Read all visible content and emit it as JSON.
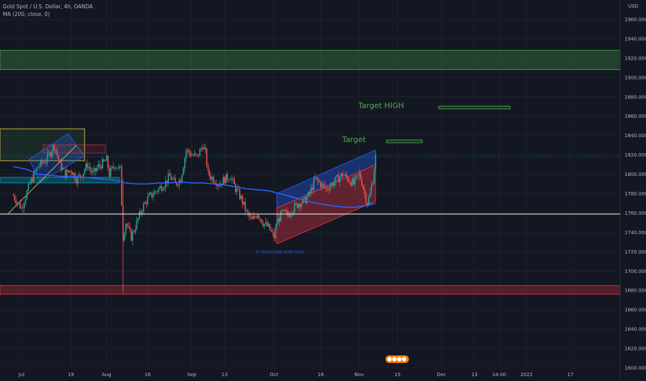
{
  "legend": {
    "symbol_line": "Gold Spot / U.S. Dollar, 4h, OANDA",
    "ma_line": "MA (200, close, 0)"
  },
  "currency_label": "USD",
  "colors": {
    "background": "#131722",
    "up": "#26a69a",
    "down": "#ef5350",
    "ma": "#2962ff",
    "green_zone": "#4caf50",
    "red_zone": "#f23645",
    "channel_blue": "#2962ff",
    "channel_red": "#f23645",
    "label_green": "#4caf50"
  },
  "chart_data": {
    "type": "candlestick",
    "title": "Gold Spot / U.S. Dollar, 4h, OANDA",
    "indicator": "MA (200, close, 0)",
    "y_axis": {
      "range": [
        1600,
        1960
      ],
      "ticks": [
        1960,
        1940,
        1920,
        1900,
        1880,
        1860,
        1840,
        1820,
        1800,
        1780,
        1760,
        1740,
        1720,
        1700,
        1680,
        1660,
        1640,
        1620,
        1600
      ]
    },
    "x_axis": {
      "ticks": [
        {
          "label": "Jul",
          "day": 0
        },
        {
          "label": "19",
          "day": 18
        },
        {
          "label": "Aug",
          "day": 31
        },
        {
          "label": "16",
          "day": 46
        },
        {
          "label": "Sep",
          "day": 62
        },
        {
          "label": "13",
          "day": 74
        },
        {
          "label": "Oct",
          "day": 92
        },
        {
          "label": "18",
          "day": 109
        },
        {
          "label": "Nov",
          "day": 123
        },
        {
          "label": "15",
          "day": 137
        },
        {
          "label": "Dec",
          "day": 153
        },
        {
          "label": "13",
          "day": 165
        },
        {
          "label": "14:00",
          "day": 174
        },
        {
          "label": "2022",
          "day": 184
        },
        {
          "label": "17",
          "day": 200
        }
      ]
    },
    "price_path": [
      [
        -3,
        1778
      ],
      [
        0,
        1765
      ],
      [
        3,
        1790
      ],
      [
        6,
        1808
      ],
      [
        9,
        1815
      ],
      [
        12,
        1830
      ],
      [
        14,
        1810
      ],
      [
        16,
        1800
      ],
      [
        18,
        1805
      ],
      [
        20,
        1795
      ],
      [
        22,
        1800
      ],
      [
        24,
        1810
      ],
      [
        26,
        1800
      ],
      [
        28,
        1808
      ],
      [
        30,
        1812
      ],
      [
        31,
        1815
      ],
      [
        32,
        1800
      ],
      [
        34,
        1810
      ],
      [
        36,
        1805
      ],
      [
        37,
        1735
      ],
      [
        38,
        1750
      ],
      [
        40,
        1735
      ],
      [
        42,
        1750
      ],
      [
        44,
        1765
      ],
      [
        46,
        1775
      ],
      [
        48,
        1780
      ],
      [
        50,
        1785
      ],
      [
        52,
        1790
      ],
      [
        54,
        1798
      ],
      [
        56,
        1790
      ],
      [
        58,
        1795
      ],
      [
        60,
        1825
      ],
      [
        62,
        1820
      ],
      [
        64,
        1818
      ],
      [
        66,
        1830
      ],
      [
        67,
        1822
      ],
      [
        68,
        1800
      ],
      [
        70,
        1795
      ],
      [
        72,
        1790
      ],
      [
        74,
        1795
      ],
      [
        76,
        1798
      ],
      [
        78,
        1785
      ],
      [
        80,
        1775
      ],
      [
        82,
        1760
      ],
      [
        84,
        1752
      ],
      [
        86,
        1760
      ],
      [
        88,
        1750
      ],
      [
        90,
        1745
      ],
      [
        92,
        1735
      ],
      [
        93,
        1750
      ],
      [
        95,
        1760
      ],
      [
        97,
        1758
      ],
      [
        99,
        1765
      ],
      [
        101,
        1770
      ],
      [
        103,
        1772
      ],
      [
        105,
        1780
      ],
      [
        107,
        1795
      ],
      [
        109,
        1790
      ],
      [
        111,
        1785
      ],
      [
        113,
        1790
      ],
      [
        115,
        1795
      ],
      [
        117,
        1800
      ],
      [
        119,
        1795
      ],
      [
        121,
        1790
      ],
      [
        123,
        1800
      ],
      [
        124,
        1792
      ],
      [
        125,
        1780
      ],
      [
        126,
        1770
      ],
      [
        127,
        1780
      ],
      [
        128,
        1795
      ],
      [
        129,
        1818
      ]
    ],
    "ma_path": [
      [
        -3,
        1808
      ],
      [
        2,
        1805
      ],
      [
        6,
        1800
      ],
      [
        10,
        1799
      ],
      [
        14,
        1798
      ],
      [
        18,
        1798
      ],
      [
        22,
        1797
      ],
      [
        26,
        1796
      ],
      [
        30,
        1795
      ],
      [
        34,
        1794
      ],
      [
        38,
        1791
      ],
      [
        42,
        1790
      ],
      [
        46,
        1790
      ],
      [
        50,
        1791
      ],
      [
        54,
        1791
      ],
      [
        58,
        1792
      ],
      [
        62,
        1791
      ],
      [
        66,
        1791
      ],
      [
        70,
        1790
      ],
      [
        74,
        1789
      ],
      [
        78,
        1787
      ],
      [
        82,
        1785
      ],
      [
        86,
        1784
      ],
      [
        90,
        1783
      ],
      [
        94,
        1780
      ],
      [
        98,
        1777
      ],
      [
        102,
        1774
      ],
      [
        106,
        1771
      ],
      [
        110,
        1769
      ],
      [
        114,
        1767
      ],
      [
        118,
        1766
      ],
      [
        122,
        1766
      ],
      [
        126,
        1768
      ],
      [
        129,
        1770
      ]
    ],
    "current_price": 1818.17,
    "current_price_label": "1818.170",
    "support_line": 1758.906,
    "support_line_label": "1758.906",
    "zones": [
      {
        "name": "green-zone",
        "from": 1908,
        "to": 1928,
        "color": "#4caf50"
      },
      {
        "name": "red-zone",
        "from": 1676,
        "to": 1685,
        "color": "#f23645"
      }
    ],
    "channel": {
      "start_day": 93,
      "end_day": 129,
      "upper_start": 1780,
      "upper_end": 1825,
      "mid_start": 1765,
      "mid_end": 1810,
      "lower_start": 1728,
      "lower_end": 1772
    },
    "fib_label": "0.7641(1000.8287162)",
    "targets": [
      {
        "label": "Target",
        "price": 1834,
        "start_day": 133,
        "end_day": 146
      },
      {
        "label": "Target HIGH",
        "price": 1869,
        "start_day": 152,
        "end_day": 178
      }
    ]
  }
}
